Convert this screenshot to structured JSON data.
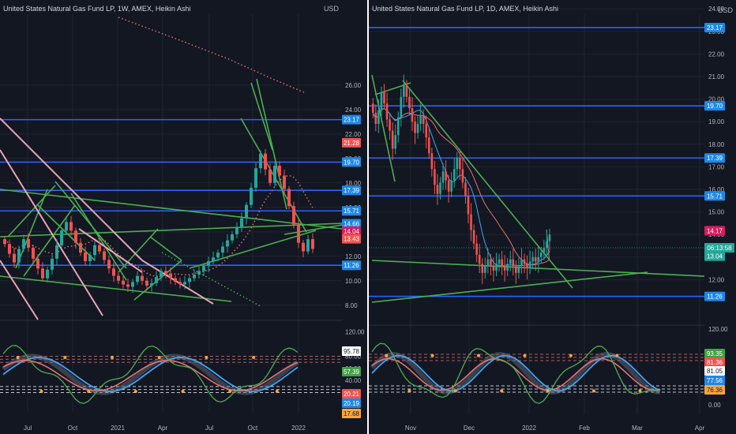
{
  "colors": {
    "background": "#131722",
    "grid": "#1f2431",
    "text": "#d1d4dc",
    "up": "#26a69a",
    "down": "#ef5350",
    "level_line": "#2962ff",
    "trendline": "#4caf50",
    "pink_line": "#e9a3b7",
    "ma_red": "#e57373",
    "ma_blue": "#42a5f5",
    "divider": "#ffffff",
    "badge_blue": "#1e88e5",
    "badge_magenta": "#d81b60",
    "badge_red": "#ef5350",
    "badge_teal": "#26a69a",
    "badge_orange": "#f7a541",
    "badge_green": "#43a047"
  },
  "chart_data": [
    {
      "type": "candlestick",
      "title": "United States Natural Gas Fund LP, 1W, AMEX, Heikin Ashi",
      "currency": "USD",
      "price_ticks": [
        "8.00",
        "10.00",
        "12.00",
        "14.00",
        "16.00",
        "18.00",
        "20.00",
        "22.00",
        "24.00",
        "26.00"
      ],
      "ylim": [
        6.5,
        27
      ],
      "time_ticks": [
        "Jul",
        "Oct",
        "2021",
        "Apr",
        "Jul",
        "Oct",
        "2022"
      ],
      "horizontal_levels": [
        23.17,
        19.7,
        17.39,
        15.71,
        11.26
      ],
      "price_badges": [
        {
          "label": "23.17",
          "color": "#1e88e5"
        },
        {
          "label": "21.28",
          "color": "#ef5350"
        },
        {
          "label": "19.70",
          "color": "#1e88e5"
        },
        {
          "label": "17.39",
          "color": "#1e88e5"
        },
        {
          "label": "15.71",
          "color": "#1e88e5"
        },
        {
          "label": "14.66",
          "color": "#1e88e5"
        },
        {
          "label": "14.04",
          "color": "#d81b60"
        },
        {
          "label": "13.43",
          "color": "#ef5350"
        },
        {
          "label": "11.26",
          "color": "#1e88e5"
        }
      ],
      "candles": [
        [
          13.4,
          13.0
        ],
        [
          13.0,
          12.2
        ],
        [
          12.2,
          11.5
        ],
        [
          11.5,
          12.6
        ],
        [
          12.6,
          13.4
        ],
        [
          13.4,
          12.7
        ],
        [
          12.7,
          11.8
        ],
        [
          11.8,
          11.0
        ],
        [
          11.0,
          10.2
        ],
        [
          10.2,
          10.9
        ],
        [
          10.9,
          11.8
        ],
        [
          11.8,
          12.9
        ],
        [
          12.9,
          14.1
        ],
        [
          14.1,
          14.8
        ],
        [
          14.8,
          14.1
        ],
        [
          14.1,
          13.1
        ],
        [
          13.1,
          12.3
        ],
        [
          12.3,
          11.6
        ],
        [
          11.6,
          12.1
        ],
        [
          12.1,
          12.9
        ],
        [
          12.9,
          12.4
        ],
        [
          12.4,
          11.7
        ],
        [
          11.7,
          11.0
        ],
        [
          11.0,
          10.4
        ],
        [
          10.4,
          10.0
        ],
        [
          10.0,
          9.7
        ],
        [
          9.7,
          9.5
        ],
        [
          9.5,
          9.9
        ],
        [
          9.9,
          10.4
        ],
        [
          10.4,
          10.0
        ],
        [
          10.0,
          9.6
        ],
        [
          9.6,
          9.8
        ],
        [
          9.8,
          10.3
        ],
        [
          10.3,
          10.8
        ],
        [
          10.8,
          10.6
        ],
        [
          10.6,
          10.2
        ],
        [
          10.2,
          9.9
        ],
        [
          9.9,
          9.7
        ],
        [
          9.7,
          9.9
        ],
        [
          9.9,
          10.2
        ],
        [
          10.2,
          10.5
        ],
        [
          10.5,
          10.8
        ],
        [
          10.8,
          11.2
        ],
        [
          11.2,
          11.6
        ],
        [
          11.6,
          11.9
        ],
        [
          11.9,
          12.3
        ],
        [
          12.3,
          12.8
        ],
        [
          12.8,
          13.3
        ],
        [
          13.3,
          13.8
        ],
        [
          13.8,
          14.4
        ],
        [
          14.4,
          15.1
        ],
        [
          15.1,
          16.2
        ],
        [
          16.2,
          17.6
        ],
        [
          17.6,
          19.2
        ],
        [
          19.2,
          20.4
        ],
        [
          20.4,
          19.1
        ],
        [
          19.1,
          18.0
        ],
        [
          18.0,
          19.4
        ],
        [
          19.4,
          18.6
        ],
        [
          18.6,
          17.5
        ],
        [
          17.5,
          16.1
        ],
        [
          16.1,
          14.6
        ],
        [
          14.6,
          13.1
        ],
        [
          13.1,
          12.4
        ],
        [
          12.4,
          13.4
        ],
        [
          13.4,
          12.6
        ]
      ],
      "trendlines": 17,
      "moving_average": "red dotted"
    },
    {
      "type": "candlestick",
      "title": "United States Natural Gas Fund LP, 1D, AMEX, Heikin Ashi",
      "currency": "USD",
      "price_ticks": [
        "12.00",
        "13.00",
        "14.00",
        "15.00",
        "16.00",
        "17.00",
        "18.00",
        "19.00",
        "20.00",
        "21.00",
        "22.00",
        "23.00",
        "24.00"
      ],
      "ylim": [
        11.0,
        24.2
      ],
      "time_ticks": [
        "Nov",
        "Dec",
        "2022",
        "Feb",
        "Mar",
        "Apr"
      ],
      "horizontal_levels": [
        23.17,
        19.7,
        17.39,
        15.71,
        11.26
      ],
      "countdown": "06:13:58",
      "price_badges": [
        {
          "label": "23.17",
          "color": "#1e88e5"
        },
        {
          "label": "19.70",
          "color": "#1e88e5"
        },
        {
          "label": "17.39",
          "color": "#1e88e5"
        },
        {
          "label": "15.71",
          "color": "#1e88e5"
        },
        {
          "label": "14.17",
          "color": "#d81b60"
        },
        {
          "label": "13.04",
          "color": "#26a69a"
        },
        {
          "label": "11.26",
          "color": "#1e88e5"
        }
      ],
      "candles": [
        [
          19.8,
          19.4
        ],
        [
          19.4,
          18.9
        ],
        [
          18.9,
          19.5
        ],
        [
          19.5,
          20.3
        ],
        [
          20.3,
          19.8
        ],
        [
          19.8,
          19.1
        ],
        [
          19.1,
          18.6
        ],
        [
          18.6,
          17.8
        ],
        [
          17.8,
          18.4
        ],
        [
          18.4,
          19.2
        ],
        [
          19.2,
          20.1
        ],
        [
          20.1,
          20.6
        ],
        [
          20.6,
          20.1
        ],
        [
          20.1,
          19.6
        ],
        [
          19.6,
          19.0
        ],
        [
          19.0,
          18.5
        ],
        [
          18.5,
          18.9
        ],
        [
          18.9,
          19.3
        ],
        [
          19.3,
          18.9
        ],
        [
          18.9,
          18.3
        ],
        [
          18.3,
          17.6
        ],
        [
          17.6,
          16.9
        ],
        [
          16.9,
          16.2
        ],
        [
          16.2,
          15.8
        ],
        [
          15.8,
          16.3
        ],
        [
          16.3,
          16.8
        ],
        [
          16.8,
          16.4
        ],
        [
          16.4,
          15.9
        ],
        [
          15.9,
          16.4
        ],
        [
          16.4,
          16.9
        ],
        [
          16.9,
          17.4
        ],
        [
          17.4,
          16.9
        ],
        [
          16.9,
          16.3
        ],
        [
          16.3,
          15.7
        ],
        [
          15.7,
          14.9
        ],
        [
          14.9,
          14.2
        ],
        [
          14.2,
          13.6
        ],
        [
          13.6,
          13.1
        ],
        [
          13.1,
          12.7
        ],
        [
          12.7,
          12.3
        ],
        [
          12.3,
          12.6
        ],
        [
          12.6,
          12.9
        ],
        [
          12.9,
          12.6
        ],
        [
          12.6,
          12.4
        ],
        [
          12.4,
          12.7
        ],
        [
          12.7,
          12.9
        ],
        [
          12.9,
          12.6
        ],
        [
          12.6,
          12.4
        ],
        [
          12.4,
          12.7
        ],
        [
          12.7,
          12.9
        ],
        [
          12.9,
          12.6
        ],
        [
          12.6,
          12.3
        ],
        [
          12.3,
          12.6
        ],
        [
          12.6,
          12.9
        ],
        [
          12.9,
          12.7
        ],
        [
          12.7,
          12.5
        ],
        [
          12.5,
          12.8
        ],
        [
          12.8,
          13.0
        ],
        [
          13.0,
          12.8
        ],
        [
          12.8,
          13.0
        ],
        [
          13.0,
          13.2
        ],
        [
          13.2,
          13.4
        ],
        [
          13.4,
          13.7
        ],
        [
          13.7,
          14.0
        ]
      ],
      "trendlines": 5,
      "moving_averages": [
        "red",
        "blue"
      ]
    }
  ],
  "oscillator_left": {
    "ticks": [
      "120.00",
      "80.00",
      "60.00",
      "40.00",
      "20.00",
      "0.00"
    ],
    "ylim": [
      -20,
      125
    ],
    "badges": [
      {
        "label": "95.78",
        "color": "#ffffff",
        "text": "#131722"
      },
      {
        "label": "57.39",
        "color": "#43a047",
        "text": "#ffffff"
      },
      {
        "label": "20.21",
        "color": "#ef5350",
        "text": "#ffffff"
      },
      {
        "label": "20.19",
        "color": "#1e88e5",
        "text": "#ffffff"
      },
      {
        "label": "17.68",
        "color": "#f7a541",
        "text": "#131722"
      }
    ],
    "dashed_levels": [
      80,
      75,
      70,
      30,
      25,
      20
    ]
  },
  "oscillator_right": {
    "ticks": [
      "120.00",
      "80.00",
      "60.00",
      "40.00",
      "20.00",
      "0.00"
    ],
    "ylim": [
      -20,
      125
    ],
    "badges": [
      {
        "label": "93.35",
        "color": "#43a047",
        "text": "#ffffff"
      },
      {
        "label": "81.36",
        "color": "#ef5350",
        "text": "#ffffff"
      },
      {
        "label": "81.05",
        "color": "#ffffff",
        "text": "#131722"
      },
      {
        "label": "77.56",
        "color": "#1e88e5",
        "text": "#ffffff"
      },
      {
        "label": "76.36",
        "color": "#f7a541",
        "text": "#131722"
      }
    ],
    "dashed_levels": [
      80,
      75,
      70,
      30,
      25,
      20
    ]
  }
}
